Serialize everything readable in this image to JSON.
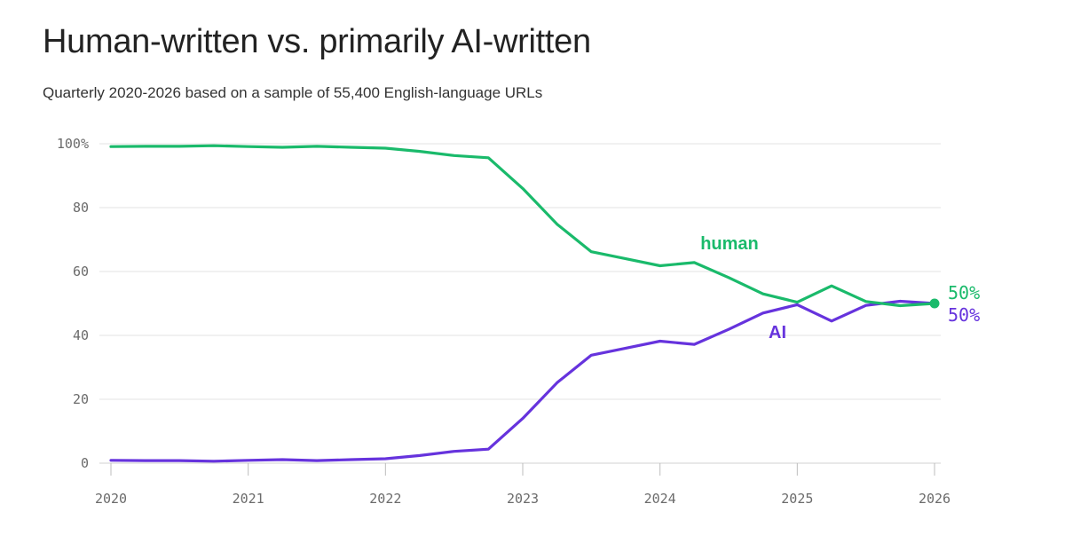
{
  "header": {
    "title": "Human-written vs. primarily AI-written",
    "subtitle": "Quarterly 2020-2026 based on a sample of 55,400 English-language URLs"
  },
  "chart_data": {
    "type": "line",
    "title": "Human-written vs. primarily AI-written",
    "subtitle": "Quarterly 2020-2026 based on a sample of 55,400 English-language URLs",
    "xlabel": "",
    "ylabel": "",
    "x": [
      2020,
      2020.25,
      2020.5,
      2020.75,
      2021,
      2021.25,
      2021.5,
      2021.75,
      2022,
      2022.25,
      2022.5,
      2022.75,
      2023,
      2023.25,
      2023.5,
      2023.75,
      2024,
      2024.25,
      2024.5,
      2024.75,
      2025,
      2025.25,
      2025.5,
      2025.75,
      2026
    ],
    "xlim": [
      2020,
      2026
    ],
    "ylim": [
      0,
      100
    ],
    "xticks": [
      {
        "value": 2020,
        "label": "2020"
      },
      {
        "value": 2021,
        "label": "2021"
      },
      {
        "value": 2022,
        "label": "2022"
      },
      {
        "value": 2023,
        "label": "2023"
      },
      {
        "value": 2024,
        "label": "2024"
      },
      {
        "value": 2025,
        "label": "2025"
      },
      {
        "value": 2026,
        "label": "2026"
      }
    ],
    "yticks": [
      {
        "value": 0,
        "label": "0"
      },
      {
        "value": 20,
        "label": "20"
      },
      {
        "value": 40,
        "label": "40"
      },
      {
        "value": 60,
        "label": "60"
      },
      {
        "value": 80,
        "label": "80"
      },
      {
        "value": 100,
        "label": "100%"
      }
    ],
    "grid": "horizontal",
    "series": [
      {
        "name": "human",
        "color": "#1aba6b",
        "values": [
          99.1,
          99.2,
          99.2,
          99.4,
          99.1,
          98.9,
          99.2,
          98.9,
          98.6,
          97.6,
          96.3,
          95.6,
          86.0,
          74.8,
          66.2,
          64.0,
          61.8,
          62.8,
          58.1,
          53.0,
          50.4,
          55.5,
          50.6,
          49.3,
          50.0
        ],
        "end_label": "50%"
      },
      {
        "name": "AI",
        "color": "#6633dd",
        "values": [
          0.9,
          0.8,
          0.8,
          0.6,
          0.9,
          1.1,
          0.8,
          1.1,
          1.4,
          2.4,
          3.7,
          4.4,
          14.0,
          25.2,
          33.8,
          36.0,
          38.2,
          37.2,
          41.9,
          47.0,
          49.6,
          44.5,
          49.4,
          50.7,
          50.0
        ],
        "end_label": "50%"
      }
    ]
  }
}
